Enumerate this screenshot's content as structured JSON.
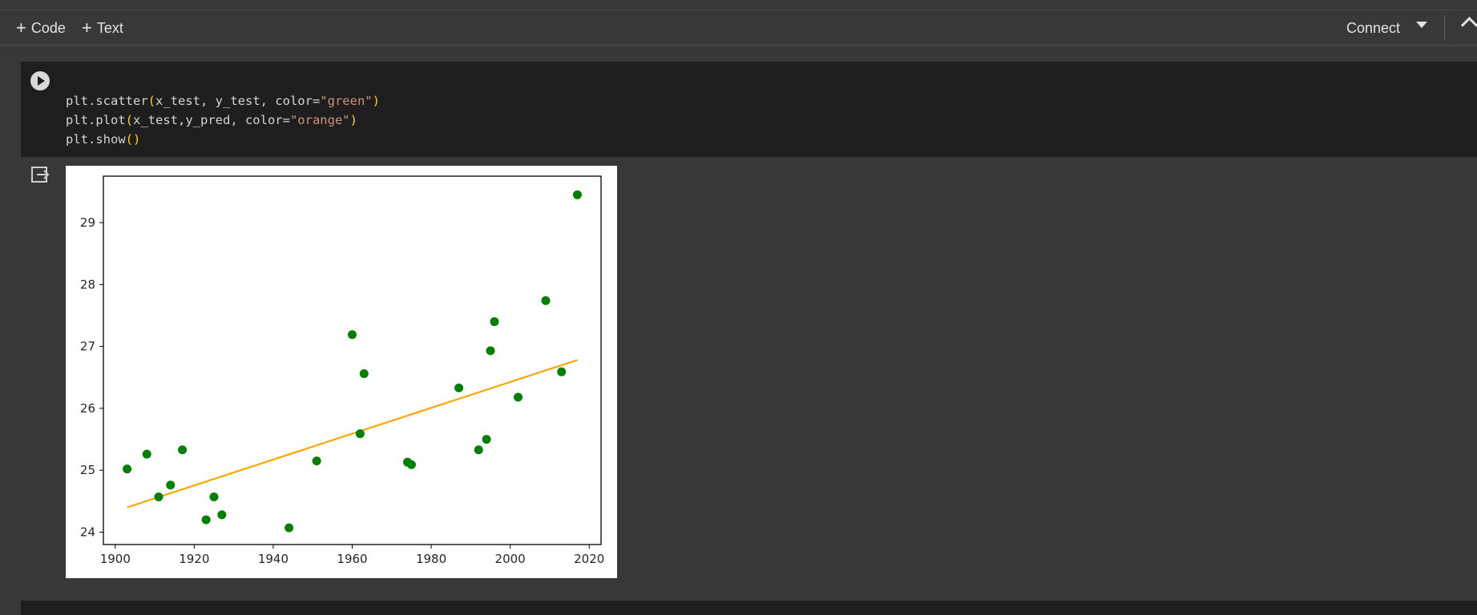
{
  "toolbar": {
    "code_label": "Code",
    "text_label": "Text",
    "connect_label": "Connect"
  },
  "cell": {
    "code": {
      "line1": {
        "a": "plt.scatter",
        "b": "(",
        "c": "x_test, y_test, color=",
        "d": "\"green\"",
        "e": ")"
      },
      "line2": {
        "a": "plt.plot",
        "b": "(",
        "c": "x_test,y_pred, color=",
        "d": "\"orange\"",
        "e": ")"
      },
      "line3": {
        "a": "plt.show",
        "b": "()"
      }
    }
  },
  "chart_data": {
    "type": "scatter",
    "title": "",
    "xlabel": "",
    "ylabel": "",
    "xlim": [
      1897,
      2023
    ],
    "ylim": [
      23.8,
      29.75
    ],
    "xticks": [
      1900,
      1920,
      1940,
      1960,
      1980,
      2000,
      2020
    ],
    "yticks": [
      24,
      25,
      26,
      27,
      28,
      29
    ],
    "grid": false,
    "series": [
      {
        "kind": "scatter",
        "color": "#008000",
        "x": [
          1903,
          1908,
          1911,
          1914,
          1917,
          1923,
          1925,
          1927,
          1944,
          1951,
          1960,
          1962,
          1963,
          1974,
          1975,
          1987,
          1992,
          1994,
          1995,
          1996,
          2002,
          2009,
          2013,
          2017
        ],
        "y": [
          25.02,
          25.26,
          24.57,
          24.76,
          25.33,
          24.2,
          24.57,
          24.28,
          24.07,
          25.15,
          27.19,
          25.59,
          26.56,
          25.13,
          25.09,
          26.33,
          25.33,
          25.5,
          26.93,
          27.4,
          26.18,
          27.74,
          26.59,
          29.45
        ]
      },
      {
        "kind": "line",
        "color": "#ffa500",
        "x": [
          1903,
          2017
        ],
        "y": [
          24.4,
          26.78
        ]
      }
    ]
  }
}
